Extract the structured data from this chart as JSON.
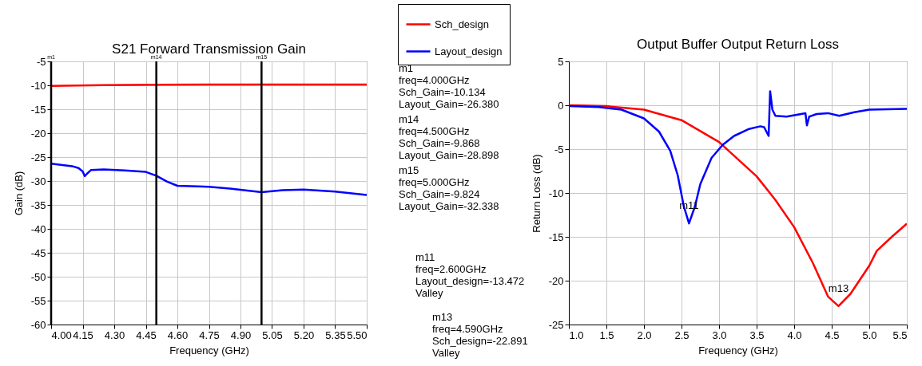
{
  "chart_data": [
    {
      "type": "line",
      "title": "S21 Forward Transmission Gain",
      "xlabel": "Frequency (GHz)",
      "ylabel": "Gain (dB)",
      "xlim": [
        4,
        5.5
      ],
      "xticks": [
        {
          "value": 4,
          "label": "4.00"
        },
        {
          "value": 4.15,
          "label": "4.15"
        },
        {
          "value": 4.3,
          "label": "4.30"
        },
        {
          "value": 4.45,
          "label": "4.45"
        },
        {
          "value": 4.6,
          "label": "4.60"
        },
        {
          "value": 4.75,
          "label": "4.75"
        },
        {
          "value": 4.9,
          "label": "4.90"
        },
        {
          "value": 5.05,
          "label": "5.05"
        },
        {
          "value": 5.2,
          "label": "5.20"
        },
        {
          "value": 5.35,
          "label": "5.35"
        },
        {
          "value": 5.5,
          "label": "5.50"
        }
      ],
      "ylim": [
        -60,
        -5
      ],
      "yticks": [
        -60,
        -55,
        -50,
        -45,
        -40,
        -35,
        -30,
        -25,
        -20,
        -15,
        -10,
        -5
      ],
      "grid": true,
      "legend": "top right",
      "line_style": "solid",
      "x": [
        4,
        4.1,
        4.13,
        4.15,
        4.16,
        4.17,
        4.19,
        4.25,
        4.35,
        4.45,
        4.5,
        4.55,
        4.6,
        4.75,
        4.85,
        5,
        5.1,
        5.2,
        5.35,
        5.5
      ],
      "series": [
        {
          "name": "Sch_design",
          "color": "#ff0000",
          "x": [
            4,
            4.25,
            4.5,
            4.75,
            5,
            5.25,
            5.5
          ],
          "values": [
            -10.134,
            -9.95,
            -9.868,
            -9.84,
            -9.824,
            -9.84,
            -9.85
          ]
        },
        {
          "name": "Layout_design",
          "color": "#0000ff",
          "values": [
            -26.38,
            -26.9,
            -27.3,
            -28.0,
            -29.0,
            -28.5,
            -27.7,
            -27.6,
            -27.8,
            -28.1,
            -28.898,
            -30.1,
            -31.0,
            -31.2,
            -31.6,
            -32.338,
            -31.9,
            -31.8,
            -32.2,
            -32.9
          ]
        }
      ],
      "ref_lines": [
        {
          "axis": "x",
          "value": 4,
          "label": "m1",
          "color": "#000000"
        },
        {
          "axis": "x",
          "value": 4.5,
          "label": "m14",
          "color": "#000000"
        },
        {
          "axis": "x",
          "value": 5,
          "label": "m15",
          "color": "#000000"
        }
      ],
      "annotations": [
        "m1\nfreq=4.000GHz\nSch_Gain=-10.134\nLayout_Gain=-26.380",
        "m14\nfreq=4.500GHz\nSch_Gain=-9.868\nLayout_Gain=-28.898",
        "m15\nfreq=5.000GHz\nSch_Gain=-9.824\nLayout_Gain=-32.338"
      ]
    },
    {
      "type": "line",
      "title": "Output Buffer Output Return Loss",
      "xlabel": "Frequency (GHz)",
      "ylabel": "Return Loss (dB)",
      "xlim": [
        1,
        5.5
      ],
      "xticks": [
        {
          "value": 1,
          "label": "1.0"
        },
        {
          "value": 1.5,
          "label": "1.5"
        },
        {
          "value": 2,
          "label": "2.0"
        },
        {
          "value": 2.5,
          "label": "2.5"
        },
        {
          "value": 3,
          "label": "3.0"
        },
        {
          "value": 3.5,
          "label": "3.5"
        },
        {
          "value": 4,
          "label": "4.0"
        },
        {
          "value": 4.5,
          "label": "4.5"
        },
        {
          "value": 5,
          "label": "5.0"
        },
        {
          "value": 5.5,
          "label": "5.5"
        }
      ],
      "ylim": [
        -25,
        5
      ],
      "yticks": [
        -25,
        -20,
        -15,
        -10,
        -5,
        0,
        5
      ],
      "grid": true,
      "line_style": "solid",
      "series": [
        {
          "color": "#ff0000",
          "x": [
            1,
            1.5,
            2,
            2.5,
            3,
            3.5,
            3.75,
            4,
            4.25,
            4.45,
            4.59,
            4.75,
            5,
            5.1,
            5.3,
            5.5
          ],
          "values": [
            0,
            -0.1,
            -0.5,
            -1.7,
            -4.2,
            -8.1,
            -10.8,
            -13.9,
            -18.0,
            -21.8,
            -22.891,
            -21.5,
            -18.3,
            -16.6,
            -15.0,
            -13.5
          ]
        },
        {
          "color": "#0000ff",
          "x": [
            1,
            1.4,
            1.7,
            2,
            2.2,
            2.35,
            2.45,
            2.53,
            2.6,
            2.68,
            2.75,
            2.9,
            3.05,
            3.2,
            3.4,
            3.55,
            3.6,
            3.66,
            3.68,
            3.71,
            3.75,
            3.9,
            4.15,
            4.17,
            4.2,
            4.3,
            4.45,
            4.6,
            4.8,
            5,
            5.5
          ],
          "values": [
            -0.1,
            -0.2,
            -0.5,
            -1.5,
            -3.0,
            -5.2,
            -8.0,
            -11.5,
            -13.472,
            -11.5,
            -9.0,
            -6.0,
            -4.5,
            -3.5,
            -2.7,
            -2.4,
            -2.5,
            -3.5,
            1.6,
            -0.5,
            -1.2,
            -1.3,
            -0.9,
            -2.3,
            -1.3,
            -1.0,
            -0.9,
            -1.2,
            -0.8,
            -0.5,
            -0.4
          ]
        }
      ],
      "annotations": [
        {
          "text": "m11",
          "x": 2.6,
          "y": -13.472
        },
        {
          "text": "m13",
          "x": 4.59,
          "y": -22.891
        },
        "m11\nfreq=2.600GHz\nLayout_design=-13.472\nValley",
        "m13\nfreq=4.590GHz\nSch_design=-22.891\nValley"
      ]
    }
  ]
}
